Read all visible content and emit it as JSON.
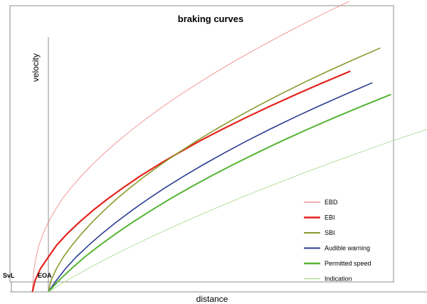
{
  "chart_data": {
    "type": "line",
    "title": "braking curves",
    "xlabel": "distance",
    "ylabel": "velocity",
    "markers": [
      "SvL",
      "EOA"
    ],
    "grid": false,
    "legend_position": "bottom-right",
    "series": [
      {
        "name": "EBD",
        "color": "#f08080",
        "points": [
          [
            -3.0,
            0
          ],
          [
            -2.9,
            4
          ],
          [
            -2.7,
            8
          ],
          [
            -2.3,
            12
          ],
          [
            -1.8,
            16
          ],
          [
            -1.0,
            20
          ],
          [
            0,
            24
          ],
          [
            1.2,
            28
          ],
          [
            2.6,
            32
          ],
          [
            4.3,
            36
          ],
          [
            6.2,
            40
          ],
          [
            8.3,
            44
          ],
          [
            10.6,
            48
          ],
          [
            13.1,
            52
          ],
          [
            15.8,
            56
          ],
          [
            18.6,
            60
          ],
          [
            21.6,
            64
          ],
          [
            24.8,
            68
          ],
          [
            28.2,
            72
          ],
          [
            31.7,
            76
          ],
          [
            35.4,
            80
          ],
          [
            39.3,
            84
          ],
          [
            43.3,
            88
          ],
          [
            47.5,
            92
          ],
          [
            51.8,
            96
          ],
          [
            56.3,
            100
          ]
        ]
      },
      {
        "name": "EBI",
        "color": "#e4231c",
        "points": [
          [
            -3.0,
            0
          ],
          [
            -2.5,
            4
          ],
          [
            -1.5,
            8
          ],
          [
            0,
            12
          ],
          [
            1.5,
            16
          ],
          [
            3.5,
            20
          ],
          [
            5.8,
            24
          ],
          [
            8.3,
            28
          ],
          [
            11.1,
            32
          ],
          [
            14.1,
            36
          ],
          [
            17.3,
            40
          ],
          [
            20.8,
            44
          ],
          [
            24.5,
            48
          ],
          [
            28.4,
            52
          ],
          [
            32.6,
            56
          ],
          [
            37.0,
            60
          ],
          [
            41.6,
            64
          ],
          [
            46.4,
            68
          ],
          [
            51.4,
            72
          ],
          [
            56.6,
            76
          ]
        ]
      },
      {
        "name": "SBI",
        "color": "#8b9a2d",
        "points": [
          [
            0,
            0
          ],
          [
            0.5,
            4
          ],
          [
            1.5,
            8
          ],
          [
            2.8,
            12
          ],
          [
            4.4,
            16
          ],
          [
            6.2,
            20
          ],
          [
            8.2,
            24
          ],
          [
            10.4,
            28
          ],
          [
            12.8,
            32
          ],
          [
            15.4,
            36
          ],
          [
            18.2,
            40
          ],
          [
            21.2,
            44
          ],
          [
            24.4,
            48
          ],
          [
            27.8,
            52
          ],
          [
            31.4,
            56
          ],
          [
            35.2,
            60
          ],
          [
            39.2,
            64
          ],
          [
            43.4,
            68
          ],
          [
            47.8,
            72
          ],
          [
            52.4,
            76
          ],
          [
            57.2,
            80
          ],
          [
            62.2,
            84
          ]
        ]
      },
      {
        "name": "Audible warning",
        "color": "#2e3e92",
        "points": [
          [
            0,
            0
          ],
          [
            1.5,
            4
          ],
          [
            3.2,
            8
          ],
          [
            5.2,
            12
          ],
          [
            7.5,
            16
          ],
          [
            10.0,
            20
          ],
          [
            12.7,
            24
          ],
          [
            15.6,
            28
          ],
          [
            18.7,
            32
          ],
          [
            22.0,
            36
          ],
          [
            25.5,
            40
          ],
          [
            29.2,
            44
          ],
          [
            33.1,
            48
          ],
          [
            37.2,
            52
          ],
          [
            41.5,
            56
          ],
          [
            46.0,
            60
          ],
          [
            50.7,
            64
          ],
          [
            55.6,
            68
          ],
          [
            60.7,
            72
          ]
        ]
      },
      {
        "name": "Permitted speed",
        "color": "#55b433",
        "points": [
          [
            0,
            0
          ],
          [
            2.0,
            4
          ],
          [
            4.3,
            8
          ],
          [
            6.8,
            12
          ],
          [
            9.6,
            16
          ],
          [
            12.6,
            20
          ],
          [
            15.8,
            24
          ],
          [
            19.2,
            28
          ],
          [
            22.8,
            32
          ],
          [
            26.6,
            36
          ],
          [
            30.6,
            40
          ],
          [
            34.8,
            44
          ],
          [
            39.2,
            48
          ],
          [
            43.8,
            52
          ],
          [
            48.6,
            56
          ],
          [
            53.6,
            60
          ],
          [
            58.8,
            64
          ],
          [
            64.2,
            68
          ]
        ]
      },
      {
        "name": "Indication",
        "color": "#a6d98a",
        "points": [
          [
            0,
            0
          ],
          [
            3.5,
            4
          ],
          [
            7.4,
            8
          ],
          [
            11.5,
            12
          ],
          [
            15.9,
            16
          ],
          [
            20.5,
            20
          ],
          [
            25.3,
            24
          ],
          [
            30.3,
            28
          ],
          [
            35.5,
            32
          ],
          [
            40.9,
            36
          ],
          [
            46.5,
            40
          ],
          [
            52.3,
            44
          ],
          [
            58.3,
            48
          ],
          [
            64.5,
            52
          ],
          [
            70.9,
            56
          ]
        ]
      }
    ]
  }
}
